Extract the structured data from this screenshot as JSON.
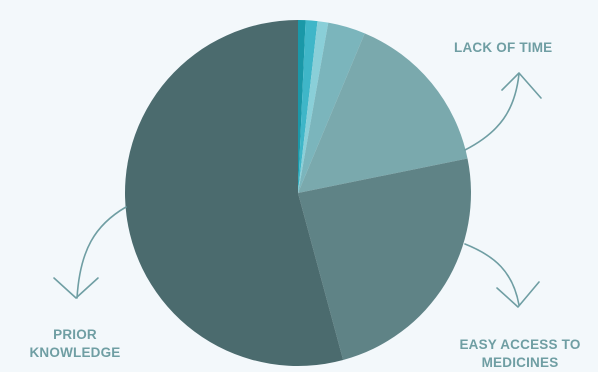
{
  "chart_data": {
    "type": "pie",
    "slices": [
      {
        "name": "",
        "value": 0.7,
        "color": "#1a98a8"
      },
      {
        "name": "",
        "value": 1.1,
        "color": "#3fb6c8"
      },
      {
        "name": "",
        "value": 1.0,
        "color": "#8acfd8"
      },
      {
        "name": "",
        "value": 3.5,
        "color": "#7bb5bc"
      },
      {
        "name": "LACK OF TIME",
        "value": 15.5,
        "color": "#7aa9ad"
      },
      {
        "name": "EASY ACCESS TO MEDICINES",
        "value": 24.0,
        "color": "#5f8386"
      },
      {
        "name": "PRIOR KNOWLEDGE",
        "value": 54.2,
        "color": "#4b6b6e"
      }
    ],
    "legend": "none",
    "title": ""
  },
  "labels": {
    "lack_of_time": "LACK OF TIME",
    "easy_access_line1": "EASY ACCESS TO",
    "easy_access_line2": "MEDICINES",
    "prior_line1": "PRIOR",
    "prior_line2": "KNOWLEDGE"
  },
  "colors": {
    "background": "#f3f8fb",
    "arrow": "#6f9ea3",
    "label": "#6f9ea3"
  }
}
